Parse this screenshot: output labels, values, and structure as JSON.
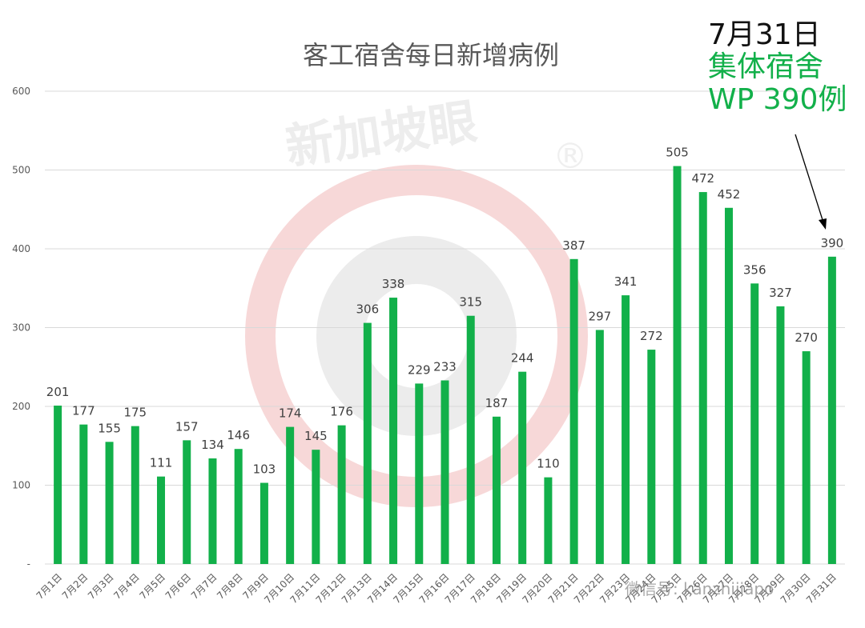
{
  "chart_data": {
    "type": "bar",
    "title": "客工宿舍每日新增病例",
    "categories": [
      "7月1日",
      "7月2日",
      "7月3日",
      "7月4日",
      "7月5日",
      "7月6日",
      "7月7日",
      "7月8日",
      "7月9日",
      "7月10日",
      "7月11日",
      "7月12日",
      "7月13日",
      "7月14日",
      "7月15日",
      "7月16日",
      "7月17日",
      "7月18日",
      "7月19日",
      "7月20日",
      "7月21日",
      "7月22日",
      "7月23日",
      "7月24日",
      "7月25日",
      "7月26日",
      "7月27日",
      "7月28日",
      "7月29日",
      "7月30日",
      "7月31日"
    ],
    "values": [
      201,
      177,
      155,
      175,
      111,
      157,
      134,
      146,
      103,
      174,
      145,
      176,
      306,
      338,
      229,
      233,
      315,
      187,
      244,
      110,
      387,
      297,
      341,
      272,
      505,
      472,
      452,
      356,
      327,
      270,
      390
    ],
    "yticks": [
      "-",
      "100",
      "200",
      "300",
      "400",
      "500",
      "600"
    ],
    "ylim": [
      0,
      600
    ],
    "grid": true,
    "bar_color": "#12b04a",
    "xlabel": "",
    "ylabel": ""
  },
  "annotation": {
    "line1": "7月31日",
    "line2": "集体宿舍",
    "line3": "WP 390例",
    "line1_color": "#111111",
    "line2_color": "#12b04a"
  },
  "watermark": {
    "text": "新加坡眼",
    "footer": "微信号: kanzhijiapo"
  }
}
